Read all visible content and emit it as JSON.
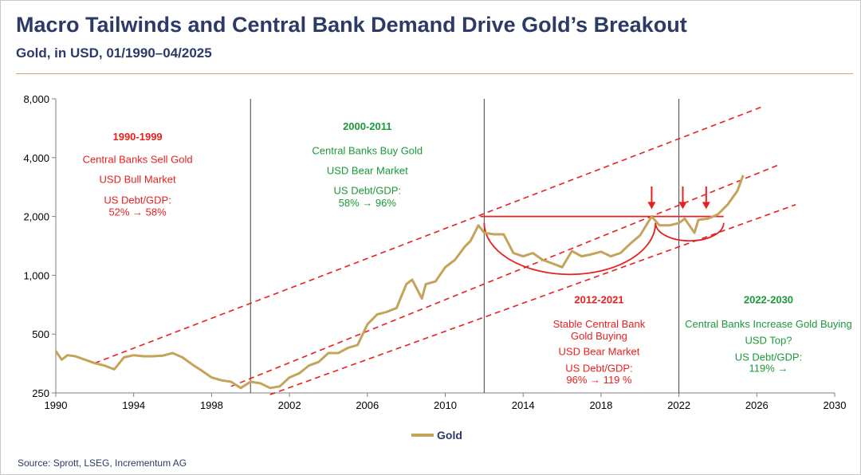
{
  "header": {
    "title": "Macro Tailwinds and Central Bank Demand Drive Gold’s Breakout",
    "subtitle": "Gold, in USD, 01/1990–04/2025"
  },
  "footer": {
    "source": "Source: Sprott, LSEG, Incrementum AG"
  },
  "colors": {
    "gold": "#c4a35a",
    "red": "#e8201f",
    "green": "#1a9a3a",
    "navy": "#2b3a67"
  },
  "chart_data": {
    "type": "line",
    "y_scale": "log",
    "xlim": [
      1990,
      2030
    ],
    "ylim": [
      250,
      8000
    ],
    "x_ticks": [
      1990,
      1994,
      1998,
      2002,
      2006,
      2010,
      2014,
      2018,
      2022,
      2026,
      2030
    ],
    "y_ticks": [
      250,
      500,
      1000,
      2000,
      4000,
      8000
    ],
    "y_tick_labels": [
      "250",
      "500",
      "1,000",
      "2,000",
      "4,000",
      "8,000"
    ],
    "legend": {
      "entries": [
        "Gold"
      ],
      "position": "bottom"
    },
    "series": [
      {
        "name": "Gold",
        "x": [
          1990.0,
          1990.3,
          1990.6,
          1991.0,
          1991.5,
          1992.0,
          1992.5,
          1993.0,
          1993.5,
          1994.0,
          1994.5,
          1995.0,
          1995.5,
          1996.0,
          1996.5,
          1997.0,
          1997.5,
          1998.0,
          1998.5,
          1999.0,
          1999.5,
          2000.0,
          2000.5,
          2001.0,
          2001.5,
          2002.0,
          2002.5,
          2003.0,
          2003.5,
          2004.0,
          2004.5,
          2005.0,
          2005.5,
          2006.0,
          2006.5,
          2007.0,
          2007.5,
          2008.0,
          2008.3,
          2008.8,
          2009.0,
          2009.5,
          2010.0,
          2010.5,
          2011.0,
          2011.3,
          2011.7,
          2012.0,
          2012.5,
          2013.0,
          2013.5,
          2014.0,
          2014.5,
          2015.0,
          2015.5,
          2016.0,
          2016.5,
          2017.0,
          2017.5,
          2018.0,
          2018.5,
          2019.0,
          2019.5,
          2020.0,
          2020.6,
          2021.0,
          2021.5,
          2022.0,
          2022.3,
          2022.8,
          2023.0,
          2023.5,
          2024.0,
          2024.5,
          2025.0,
          2025.3
        ],
        "y": [
          410,
          370,
          390,
          385,
          370,
          355,
          345,
          330,
          380,
          390,
          385,
          385,
          388,
          400,
          380,
          350,
          325,
          300,
          290,
          285,
          265,
          285,
          280,
          265,
          270,
          300,
          315,
          345,
          360,
          400,
          400,
          425,
          440,
          560,
          630,
          650,
          680,
          900,
          950,
          760,
          900,
          930,
          1100,
          1200,
          1400,
          1500,
          1800,
          1650,
          1620,
          1620,
          1300,
          1250,
          1300,
          1200,
          1150,
          1100,
          1330,
          1250,
          1280,
          1320,
          1250,
          1300,
          1450,
          1600,
          2000,
          1800,
          1800,
          1850,
          1950,
          1650,
          1920,
          1950,
          2050,
          2300,
          2700,
          3250
        ],
        "color": "#c4a35a"
      }
    ],
    "vertical_dividers": [
      2000.0,
      2012.0,
      2022.0
    ],
    "trend_channel": {
      "style": "red dashed",
      "lines": [
        {
          "x": [
            1992.0,
            2026.3
          ],
          "y": [
            355,
            7300
          ]
        },
        {
          "x": [
            1999.0,
            2027.2
          ],
          "y": [
            270,
            3700
          ]
        },
        {
          "x": [
            2001.0,
            2028.0
          ],
          "y": [
            245,
            2300
          ]
        }
      ]
    },
    "resistance_line": {
      "x": [
        2011.8,
        2024.3
      ],
      "y": 2000
    },
    "cup_patterns": [
      {
        "x": [
          2012.0,
          2020.8
        ],
        "bottom": 1010
      },
      {
        "x": [
          2020.8,
          2024.3
        ],
        "bottom": 1500
      }
    ],
    "arrows": [
      {
        "x": 2020.6,
        "y_from": 2850,
        "y_to": 2180
      },
      {
        "x": 2022.2,
        "y_from": 2850,
        "y_to": 2180
      },
      {
        "x": 2023.4,
        "y_from": 2850,
        "y_to": 2180
      }
    ],
    "annotations": [
      {
        "x": 1994.2,
        "color": "red",
        "lines": [
          {
            "text": "1990-1999",
            "bold": true,
            "y": 4900
          },
          {
            "text": "Central Banks Sell Gold",
            "y": 3750
          },
          {
            "text": "USD Bull Market",
            "y": 2970
          },
          {
            "text": "US Debt/GDP:",
            "y": 2330
          },
          {
            "text": "52% → 58%",
            "y": 2020
          }
        ]
      },
      {
        "x": 2006.0,
        "color": "green",
        "lines": [
          {
            "text": "2000-2011",
            "bold": true,
            "y": 5550
          },
          {
            "text": "Central Banks Buy Gold",
            "y": 4170
          },
          {
            "text": "USD Bear Market",
            "y": 3300
          },
          {
            "text": "US Debt/GDP:",
            "y": 2600
          },
          {
            "text": "58% → 96%",
            "y": 2250
          }
        ]
      },
      {
        "x": 2017.9,
        "color": "red",
        "lines": [
          {
            "text": "2012-2021",
            "bold": true,
            "y": 720
          },
          {
            "text": "Stable Central Bank",
            "y": 540
          },
          {
            "text": "Gold Buying",
            "y": 470
          },
          {
            "text": "USD Bear Market",
            "y": 390
          },
          {
            "text": "US Debt/GDP:",
            "y": 320
          },
          {
            "text": "96% → 119 %",
            "y": 280
          }
        ]
      },
      {
        "x": 2026.6,
        "color": "green",
        "lines": [
          {
            "text": "2022-2030",
            "bold": true,
            "y": 720
          },
          {
            "text": "Central Banks Increase  Gold Buying",
            "y": 540
          },
          {
            "text": "USD Top?",
            "y": 445
          },
          {
            "text": "US Debt/GDP:",
            "y": 365
          },
          {
            "text": "119% →",
            "y": 320
          }
        ]
      }
    ]
  }
}
